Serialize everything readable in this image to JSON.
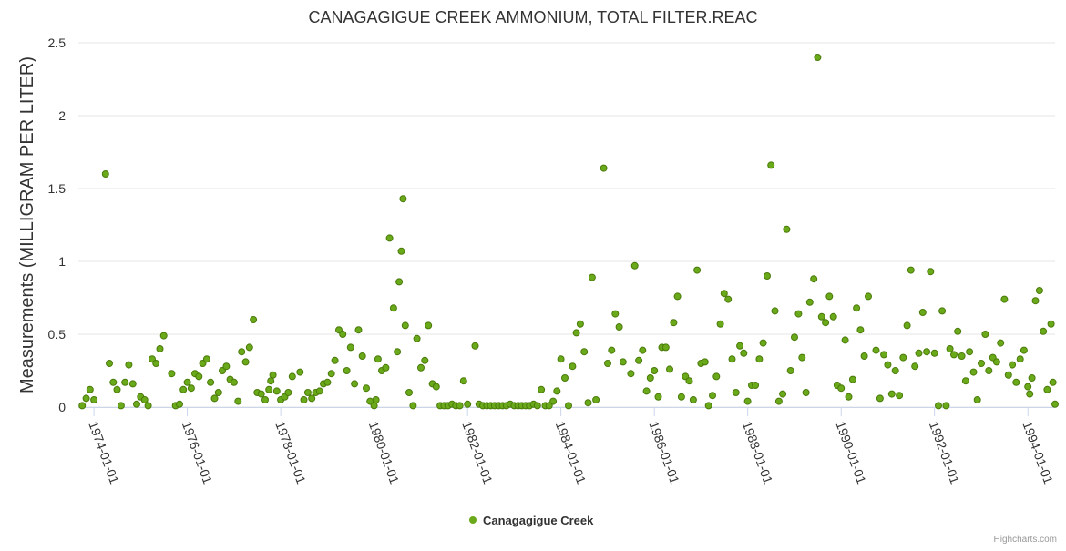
{
  "chart_data": {
    "type": "scatter",
    "title": "CANAGAGIGUE CREEK AMMONIUM, TOTAL FILTER.REAC",
    "ylabel": "Measurements (MILLIGRAM PER LITER)",
    "xlabel": "",
    "ylim": [
      0,
      2.5
    ],
    "yticks": [
      "0",
      "0.5",
      "1",
      "1.5",
      "2",
      "2.5"
    ],
    "xticks": [
      "1974-01-01",
      "1976-01-01",
      "1978-01-01",
      "1980-01-01",
      "1982-01-01",
      "1984-01-01",
      "1986-01-01",
      "1988-01-01",
      "1990-01-01",
      "1992-01-01",
      "1994-01-01"
    ],
    "xlim": [
      "1973-09-01",
      "1994-08-01"
    ],
    "grid": true,
    "legend_position": "bottom-center",
    "series": [
      {
        "name": "Canagagigue Creek",
        "color": "#6aaa1a",
        "points": [
          [
            "1973-10-01",
            0.01
          ],
          [
            "1973-11-01",
            0.06
          ],
          [
            "1973-12-01",
            0.12
          ],
          [
            "1974-01-01",
            0.05
          ],
          [
            "1974-04-01",
            1.6
          ],
          [
            "1974-05-01",
            0.3
          ],
          [
            "1974-06-01",
            0.17
          ],
          [
            "1974-07-01",
            0.12
          ],
          [
            "1974-08-01",
            0.01
          ],
          [
            "1974-09-01",
            0.17
          ],
          [
            "1974-10-01",
            0.29
          ],
          [
            "1974-11-01",
            0.16
          ],
          [
            "1974-12-01",
            0.02
          ],
          [
            "1975-01-01",
            0.07
          ],
          [
            "1975-02-01",
            0.05
          ],
          [
            "1975-03-01",
            0.01
          ],
          [
            "1975-04-01",
            0.33
          ],
          [
            "1975-05-01",
            0.3
          ],
          [
            "1975-06-01",
            0.4
          ],
          [
            "1975-07-01",
            0.49
          ],
          [
            "1975-09-01",
            0.23
          ],
          [
            "1975-10-01",
            0.01
          ],
          [
            "1975-11-01",
            0.02
          ],
          [
            "1975-12-01",
            0.12
          ],
          [
            "1976-01-01",
            0.17
          ],
          [
            "1976-02-01",
            0.13
          ],
          [
            "1976-03-01",
            0.23
          ],
          [
            "1976-04-01",
            0.21
          ],
          [
            "1976-05-01",
            0.3
          ],
          [
            "1976-06-01",
            0.33
          ],
          [
            "1976-07-01",
            0.17
          ],
          [
            "1976-08-01",
            0.06
          ],
          [
            "1976-09-01",
            0.1
          ],
          [
            "1976-10-01",
            0.25
          ],
          [
            "1976-11-01",
            0.28
          ],
          [
            "1976-12-01",
            0.19
          ],
          [
            "1977-01-01",
            0.17
          ],
          [
            "1977-02-01",
            0.04
          ],
          [
            "1977-03-01",
            0.38
          ],
          [
            "1977-04-01",
            0.31
          ],
          [
            "1977-05-01",
            0.41
          ],
          [
            "1977-06-01",
            0.6
          ],
          [
            "1977-07-01",
            0.1
          ],
          [
            "1977-08-01",
            0.09
          ],
          [
            "1977-09-01",
            0.05
          ],
          [
            "1977-10-01",
            0.12
          ],
          [
            "1977-10-15",
            0.18
          ],
          [
            "1977-11-01",
            0.22
          ],
          [
            "1977-12-01",
            0.11
          ],
          [
            "1978-01-01",
            0.05
          ],
          [
            "1978-02-01",
            0.07
          ],
          [
            "1978-03-01",
            0.1
          ],
          [
            "1978-04-01",
            0.21
          ],
          [
            "1978-06-01",
            0.24
          ],
          [
            "1978-07-01",
            0.05
          ],
          [
            "1978-08-01",
            0.1
          ],
          [
            "1978-09-01",
            0.06
          ],
          [
            "1978-10-01",
            0.1
          ],
          [
            "1978-11-01",
            0.11
          ],
          [
            "1978-12-01",
            0.16
          ],
          [
            "1979-01-01",
            0.17
          ],
          [
            "1979-02-01",
            0.23
          ],
          [
            "1979-03-01",
            0.32
          ],
          [
            "1979-04-01",
            0.53
          ],
          [
            "1979-05-01",
            0.5
          ],
          [
            "1979-06-01",
            0.25
          ],
          [
            "1979-07-01",
            0.41
          ],
          [
            "1979-08-01",
            0.16
          ],
          [
            "1979-09-01",
            0.53
          ],
          [
            "1979-10-01",
            0.35
          ],
          [
            "1979-11-01",
            0.13
          ],
          [
            "1979-12-01",
            0.04
          ],
          [
            "1980-01-01",
            0.01
          ],
          [
            "1980-01-15",
            0.05
          ],
          [
            "1980-02-01",
            0.33
          ],
          [
            "1980-03-01",
            0.25
          ],
          [
            "1980-04-01",
            0.27
          ],
          [
            "1980-05-01",
            1.16
          ],
          [
            "1980-06-01",
            0.68
          ],
          [
            "1980-07-01",
            0.38
          ],
          [
            "1980-07-15",
            0.86
          ],
          [
            "1980-08-01",
            1.07
          ],
          [
            "1980-08-15",
            1.43
          ],
          [
            "1980-09-01",
            0.56
          ],
          [
            "1980-10-01",
            0.1
          ],
          [
            "1980-11-01",
            0.01
          ],
          [
            "1980-12-01",
            0.47
          ],
          [
            "1981-01-01",
            0.27
          ],
          [
            "1981-02-01",
            0.32
          ],
          [
            "1981-03-01",
            0.56
          ],
          [
            "1981-04-01",
            0.16
          ],
          [
            "1981-05-01",
            0.14
          ],
          [
            "1981-06-01",
            0.01
          ],
          [
            "1981-07-01",
            0.01
          ],
          [
            "1981-08-01",
            0.01
          ],
          [
            "1981-09-01",
            0.02
          ],
          [
            "1981-10-01",
            0.01
          ],
          [
            "1981-11-01",
            0.01
          ],
          [
            "1981-12-01",
            0.18
          ],
          [
            "1982-01-01",
            0.02
          ],
          [
            "1982-03-01",
            0.42
          ],
          [
            "1982-04-01",
            0.02
          ],
          [
            "1982-05-01",
            0.01
          ],
          [
            "1982-06-01",
            0.01
          ],
          [
            "1982-07-01",
            0.01
          ],
          [
            "1982-08-01",
            0.01
          ],
          [
            "1982-09-01",
            0.01
          ],
          [
            "1982-10-01",
            0.01
          ],
          [
            "1982-11-01",
            0.01
          ],
          [
            "1982-12-01",
            0.02
          ],
          [
            "1983-01-01",
            0.01
          ],
          [
            "1983-02-01",
            0.01
          ],
          [
            "1983-03-01",
            0.01
          ],
          [
            "1983-04-01",
            0.01
          ],
          [
            "1983-05-01",
            0.01
          ],
          [
            "1983-06-01",
            0.02
          ],
          [
            "1983-07-01",
            0.01
          ],
          [
            "1983-08-01",
            0.12
          ],
          [
            "1983-09-01",
            0.01
          ],
          [
            "1983-10-01",
            0.01
          ],
          [
            "1983-11-01",
            0.04
          ],
          [
            "1983-12-01",
            0.11
          ],
          [
            "1984-01-01",
            0.33
          ],
          [
            "1984-02-01",
            0.2
          ],
          [
            "1984-03-01",
            0.01
          ],
          [
            "1984-04-01",
            0.28
          ],
          [
            "1984-05-01",
            0.51
          ],
          [
            "1984-06-01",
            0.57
          ],
          [
            "1984-07-01",
            0.38
          ],
          [
            "1984-08-01",
            0.03
          ],
          [
            "1984-09-01",
            0.89
          ],
          [
            "1984-10-01",
            0.05
          ],
          [
            "1984-12-01",
            1.64
          ],
          [
            "1985-01-01",
            0.3
          ],
          [
            "1985-02-01",
            0.39
          ],
          [
            "1985-03-01",
            0.64
          ],
          [
            "1985-04-01",
            0.55
          ],
          [
            "1985-05-01",
            0.31
          ],
          [
            "1985-07-01",
            0.23
          ],
          [
            "1985-08-01",
            0.97
          ],
          [
            "1985-09-01",
            0.32
          ],
          [
            "1985-10-01",
            0.39
          ],
          [
            "1985-11-01",
            0.11
          ],
          [
            "1985-12-01",
            0.2
          ],
          [
            "1986-01-01",
            0.25
          ],
          [
            "1986-02-01",
            0.07
          ],
          [
            "1986-03-01",
            0.41
          ],
          [
            "1986-04-01",
            0.41
          ],
          [
            "1986-05-01",
            0.26
          ],
          [
            "1986-06-01",
            0.58
          ],
          [
            "1986-07-01",
            0.76
          ],
          [
            "1986-08-01",
            0.07
          ],
          [
            "1986-09-01",
            0.21
          ],
          [
            "1986-10-01",
            0.18
          ],
          [
            "1986-11-01",
            0.05
          ],
          [
            "1986-12-01",
            0.94
          ],
          [
            "1987-01-01",
            0.3
          ],
          [
            "1987-02-01",
            0.31
          ],
          [
            "1987-03-01",
            0.01
          ],
          [
            "1987-04-01",
            0.08
          ],
          [
            "1987-05-01",
            0.21
          ],
          [
            "1987-06-01",
            0.57
          ],
          [
            "1987-07-01",
            0.78
          ],
          [
            "1987-08-01",
            0.74
          ],
          [
            "1987-09-01",
            0.33
          ],
          [
            "1987-10-01",
            0.1
          ],
          [
            "1987-11-01",
            0.42
          ],
          [
            "1987-12-01",
            0.37
          ],
          [
            "1988-01-01",
            0.04
          ],
          [
            "1988-02-01",
            0.15
          ],
          [
            "1988-03-01",
            0.15
          ],
          [
            "1988-04-01",
            0.33
          ],
          [
            "1988-05-01",
            0.44
          ],
          [
            "1988-06-01",
            0.9
          ],
          [
            "1988-07-01",
            1.66
          ],
          [
            "1988-08-01",
            0.66
          ],
          [
            "1988-09-01",
            0.04
          ],
          [
            "1988-10-01",
            0.09
          ],
          [
            "1988-11-01",
            1.22
          ],
          [
            "1988-12-01",
            0.25
          ],
          [
            "1989-01-01",
            0.48
          ],
          [
            "1989-02-01",
            0.64
          ],
          [
            "1989-03-01",
            0.34
          ],
          [
            "1989-04-01",
            0.1
          ],
          [
            "1989-05-01",
            0.72
          ],
          [
            "1989-06-01",
            0.88
          ],
          [
            "1989-07-01",
            2.4
          ],
          [
            "1989-08-01",
            0.62
          ],
          [
            "1989-09-01",
            0.58
          ],
          [
            "1989-10-01",
            0.76
          ],
          [
            "1989-11-01",
            0.62
          ],
          [
            "1989-12-01",
            0.15
          ],
          [
            "1990-01-01",
            0.13
          ],
          [
            "1990-02-01",
            0.46
          ],
          [
            "1990-03-01",
            0.07
          ],
          [
            "1990-04-01",
            0.19
          ],
          [
            "1990-05-01",
            0.68
          ],
          [
            "1990-06-01",
            0.53
          ],
          [
            "1990-07-01",
            0.35
          ],
          [
            "1990-08-01",
            0.76
          ],
          [
            "1990-10-01",
            0.39
          ],
          [
            "1990-11-01",
            0.06
          ],
          [
            "1990-12-01",
            0.36
          ],
          [
            "1991-01-01",
            0.29
          ],
          [
            "1991-02-01",
            0.09
          ],
          [
            "1991-03-01",
            0.25
          ],
          [
            "1991-04-01",
            0.08
          ],
          [
            "1991-05-01",
            0.34
          ],
          [
            "1991-06-01",
            0.56
          ],
          [
            "1991-07-01",
            0.94
          ],
          [
            "1991-08-01",
            0.28
          ],
          [
            "1991-09-01",
            0.37
          ],
          [
            "1991-10-01",
            0.65
          ],
          [
            "1991-11-01",
            0.38
          ],
          [
            "1991-12-01",
            0.93
          ],
          [
            "1992-01-01",
            0.37
          ],
          [
            "1992-02-01",
            0.01
          ],
          [
            "1992-03-01",
            0.66
          ],
          [
            "1992-04-01",
            0.01
          ],
          [
            "1992-05-01",
            0.4
          ],
          [
            "1992-06-01",
            0.36
          ],
          [
            "1992-07-01",
            0.52
          ],
          [
            "1992-08-01",
            0.35
          ],
          [
            "1992-09-01",
            0.18
          ],
          [
            "1992-10-01",
            0.38
          ],
          [
            "1992-11-01",
            0.24
          ],
          [
            "1992-12-01",
            0.05
          ],
          [
            "1993-01-01",
            0.3
          ],
          [
            "1993-02-01",
            0.5
          ],
          [
            "1993-03-01",
            0.25
          ],
          [
            "1993-04-01",
            0.34
          ],
          [
            "1993-05-01",
            0.31
          ],
          [
            "1993-06-01",
            0.44
          ],
          [
            "1993-07-01",
            0.74
          ],
          [
            "1993-08-01",
            0.22
          ],
          [
            "1993-09-01",
            0.29
          ],
          [
            "1993-10-01",
            0.17
          ],
          [
            "1993-11-01",
            0.33
          ],
          [
            "1993-12-01",
            0.39
          ],
          [
            "1994-01-01",
            0.14
          ],
          [
            "1994-01-15",
            0.09
          ],
          [
            "1994-02-01",
            0.2
          ],
          [
            "1994-03-01",
            0.73
          ],
          [
            "1994-04-01",
            0.8
          ],
          [
            "1994-05-01",
            0.52
          ],
          [
            "1994-06-01",
            0.12
          ],
          [
            "1994-07-01",
            0.57
          ],
          [
            "1994-07-15",
            0.17
          ],
          [
            "1994-08-01",
            0.02
          ]
        ]
      }
    ]
  },
  "credit": "Highcharts.com"
}
